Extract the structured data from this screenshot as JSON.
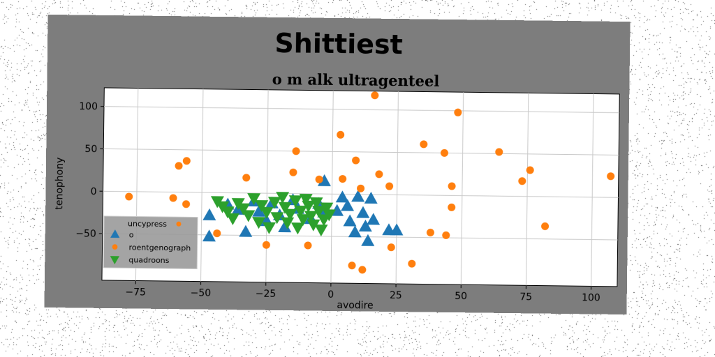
{
  "chart_data": {
    "type": "scatter",
    "title": "Shittiest",
    "subtitle": "o m alk ultragenteel",
    "xlabel": "avodire",
    "ylabel": "tenophony",
    "xlim": [
      -88,
      110
    ],
    "ylim": [
      -105,
      122
    ],
    "xticks": [
      -75,
      -50,
      -25,
      0,
      25,
      50,
      75,
      100
    ],
    "yticks": [
      100,
      50,
      0,
      -50
    ],
    "grid": true,
    "legend": {
      "placement": "lower-left",
      "title": "uncypress"
    },
    "series": [
      {
        "name": "o",
        "marker": "triangle-up",
        "color": "#1f77b4",
        "points": [
          [
            -47,
            -27
          ],
          [
            -47,
            -52
          ],
          [
            -40,
            -14
          ],
          [
            -36,
            -20
          ],
          [
            -33,
            -46
          ],
          [
            -30,
            -10
          ],
          [
            -28,
            -22
          ],
          [
            -25,
            -33
          ],
          [
            -23,
            -12
          ],
          [
            -20,
            -26
          ],
          [
            -18,
            -40
          ],
          [
            -15,
            -8
          ],
          [
            -13,
            -18
          ],
          [
            -8,
            -30
          ],
          [
            -5,
            -12
          ],
          [
            -3,
            -22
          ],
          [
            -3,
            15
          ],
          [
            2,
            -20
          ],
          [
            4,
            -4
          ],
          [
            6,
            -14
          ],
          [
            7,
            -32
          ],
          [
            9,
            -45
          ],
          [
            10,
            -3
          ],
          [
            12,
            -22
          ],
          [
            13,
            -38
          ],
          [
            14,
            -55
          ],
          [
            15,
            -5
          ],
          [
            16,
            -30
          ],
          [
            22,
            -42
          ],
          [
            25,
            -42
          ]
        ]
      },
      {
        "name": "roentgenograph",
        "marker": "circle",
        "color": "#ff7f0e",
        "points": [
          [
            -78,
            -6
          ],
          [
            -61,
            -7
          ],
          [
            -59,
            31
          ],
          [
            -56,
            37
          ],
          [
            -56,
            -14
          ],
          [
            -44,
            -48
          ],
          [
            -33,
            18
          ],
          [
            -25,
            -61
          ],
          [
            -15,
            25
          ],
          [
            -14,
            50
          ],
          [
            -9,
            -61
          ],
          [
            -5,
            17
          ],
          [
            3,
            70
          ],
          [
            4,
            18
          ],
          [
            8,
            -84
          ],
          [
            9,
            40
          ],
          [
            11,
            7
          ],
          [
            12,
            -89
          ],
          [
            16,
            117
          ],
          [
            18,
            24
          ],
          [
            22,
            10
          ],
          [
            23,
            -62
          ],
          [
            31,
            -81
          ],
          [
            35,
            60
          ],
          [
            38,
            -44
          ],
          [
            43,
            50
          ],
          [
            44,
            -47
          ],
          [
            46,
            -14
          ],
          [
            46,
            11
          ],
          [
            48,
            98
          ],
          [
            64,
            52
          ],
          [
            73,
            18
          ],
          [
            76,
            31
          ],
          [
            82,
            -35
          ],
          [
            107,
            25
          ]
        ]
      },
      {
        "name": "quadroons",
        "marker": "triangle-down",
        "color": "#2ca02c",
        "points": [
          [
            -44,
            -10
          ],
          [
            -42,
            -16
          ],
          [
            -40,
            -22
          ],
          [
            -38,
            -30
          ],
          [
            -36,
            -12
          ],
          [
            -34,
            -18
          ],
          [
            -32,
            -26
          ],
          [
            -30,
            -6
          ],
          [
            -28,
            -34
          ],
          [
            -27,
            -14
          ],
          [
            -25,
            -22
          ],
          [
            -24,
            -40
          ],
          [
            -22,
            -10
          ],
          [
            -21,
            -28
          ],
          [
            -19,
            -4
          ],
          [
            -18,
            -16
          ],
          [
            -17,
            -34
          ],
          [
            -16,
            -24
          ],
          [
            -14,
            -8
          ],
          [
            -13,
            -40
          ],
          [
            -12,
            -20
          ],
          [
            -11,
            -30
          ],
          [
            -10,
            -6
          ],
          [
            -9,
            -14
          ],
          [
            -8,
            -26
          ],
          [
            -7,
            -36
          ],
          [
            -6,
            -10
          ],
          [
            -5,
            -20
          ],
          [
            -4,
            -42
          ],
          [
            -3,
            -30
          ],
          [
            -2,
            -16
          ],
          [
            -1,
            -24
          ]
        ]
      }
    ]
  }
}
